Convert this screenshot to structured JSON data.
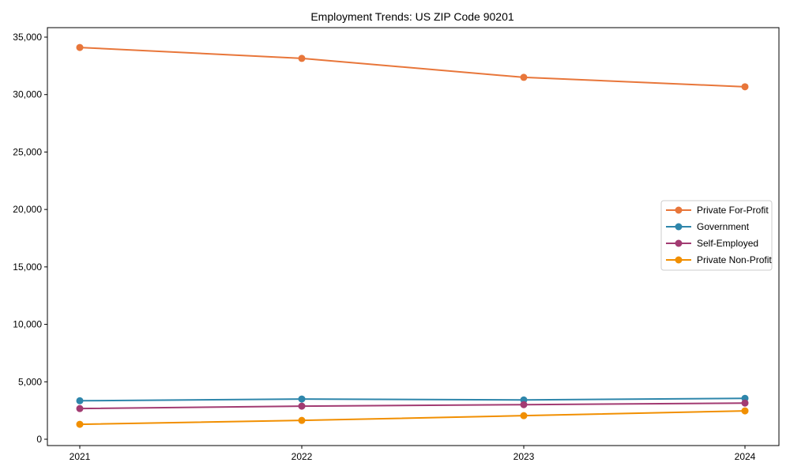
{
  "chart_data": {
    "type": "line",
    "title": "Employment Trends: US ZIP Code 90201",
    "xlabel": "",
    "ylabel": "",
    "categories": [
      "2021",
      "2022",
      "2023",
      "2024"
    ],
    "x": [
      2021,
      2022,
      2023,
      2024
    ],
    "ylim": [
      -750,
      35750
    ],
    "yticks": [
      0,
      5000,
      10000,
      15000,
      20000,
      25000,
      30000,
      35000
    ],
    "ytick_labels": [
      "0",
      "5,000",
      "10,000",
      "15,000",
      "20,000",
      "25,000",
      "30,000",
      "35,000"
    ],
    "grid": false,
    "legend_position": "center right",
    "series": [
      {
        "name": "Private For-Profit",
        "color": "#e8763a",
        "values": [
          34100,
          33150,
          31500,
          30680
        ]
      },
      {
        "name": "Government",
        "color": "#2e86ab",
        "values": [
          3350,
          3500,
          3420,
          3560
        ]
      },
      {
        "name": "Self-Employed",
        "color": "#a23b72",
        "values": [
          2670,
          2880,
          3010,
          3150
        ]
      },
      {
        "name": "Private Non-Profit",
        "color": "#f18f01",
        "values": [
          1300,
          1640,
          2050,
          2470
        ]
      }
    ]
  }
}
